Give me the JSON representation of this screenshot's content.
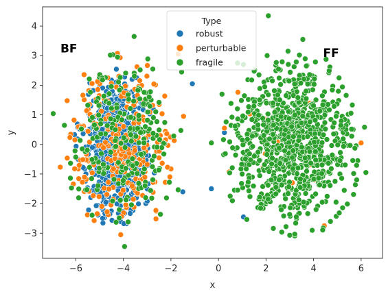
{
  "chart_data": {
    "type": "scatter",
    "xlabel": "x",
    "ylabel": "y",
    "xlim": [
      -7.4,
      6.9
    ],
    "ylim": [
      -3.85,
      4.65
    ],
    "xticks": [
      -6,
      -4,
      -2,
      0,
      2,
      4,
      6
    ],
    "yticks": [
      -3,
      -2,
      -1,
      0,
      1,
      2,
      3,
      4
    ],
    "grid": false,
    "legend": {
      "title": "Type",
      "placement": "top-center"
    },
    "annotations": [
      {
        "text": "BF",
        "x": -6.65,
        "y": 3.25
      },
      {
        "text": "FF",
        "x": 4.4,
        "y": 3.1
      }
    ],
    "series": [
      {
        "name": "robust",
        "color": "#1f77b4",
        "clusters": [
          {
            "cx": -4.3,
            "cy": -0.1,
            "sx": 0.75,
            "sy": 1.2,
            "n": 600
          }
        ],
        "points": [
          {
            "x": -1.1,
            "y": 2.05
          },
          {
            "x": -0.3,
            "y": -1.5
          },
          {
            "x": 1.05,
            "y": -2.45
          },
          {
            "x": 0.25,
            "y": 0.4
          },
          {
            "x": 3.6,
            "y": 1.15
          },
          {
            "x": -1.5,
            "y": -1.6
          }
        ]
      },
      {
        "name": "perturbable",
        "color": "#ff7f0e",
        "clusters": [
          {
            "cx": -4.0,
            "cy": 0.0,
            "sx": 1.15,
            "sy": 1.3,
            "n": 260
          },
          {
            "cx": 3.0,
            "cy": 0.0,
            "sx": 1.3,
            "sy": 1.4,
            "n": 15
          }
        ],
        "points": [
          {
            "x": 0.25,
            "y": 0.55
          },
          {
            "x": 4.45,
            "y": -2.75
          },
          {
            "x": -1.7,
            "y": 3.05
          },
          {
            "x": 6.0,
            "y": 0.05
          }
        ]
      },
      {
        "name": "fragile",
        "color": "#2ca02c",
        "clusters": [
          {
            "cx": 3.1,
            "cy": 0.0,
            "sx": 1.3,
            "sy": 1.35,
            "n": 900
          },
          {
            "cx": -4.1,
            "cy": 0.1,
            "sx": 1.25,
            "sy": 1.35,
            "n": 220
          }
        ],
        "points": [
          {
            "x": 2.1,
            "y": 4.35
          },
          {
            "x": 3.55,
            "y": 3.55
          },
          {
            "x": -3.55,
            "y": 3.65
          },
          {
            "x": -3.95,
            "y": -3.45
          },
          {
            "x": 0.15,
            "y": 1.7
          },
          {
            "x": -0.3,
            "y": 0.05
          },
          {
            "x": 6.2,
            "y": -0.95
          },
          {
            "x": 1.05,
            "y": 2.7
          },
          {
            "x": 0.8,
            "y": 2.75
          },
          {
            "x": -1.55,
            "y": 2.45
          }
        ]
      }
    ]
  }
}
